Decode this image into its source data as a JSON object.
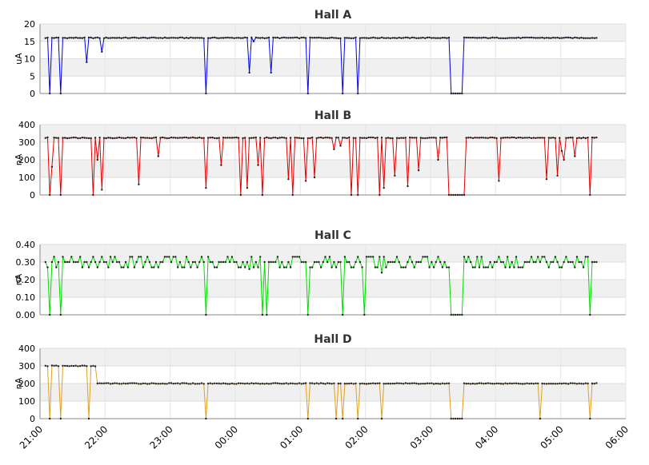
{
  "chart_data": [
    {
      "type": "line",
      "title": "Hall A",
      "ylabel": "uA",
      "ylim": [
        0,
        20
      ],
      "yticks": [
        "0",
        "5",
        "10",
        "15",
        "20"
      ],
      "color": "#0000e0",
      "base": 16,
      "x_range": [
        "21:00",
        "06:00"
      ],
      "dropouts": [
        [
          "21:08",
          0
        ],
        [
          "21:18",
          0
        ],
        [
          "21:43",
          9
        ],
        [
          "21:57",
          12
        ],
        [
          "23:33",
          0
        ],
        [
          "00:13",
          6
        ],
        [
          "00:17",
          15
        ],
        [
          "00:33",
          6
        ],
        [
          "01:06",
          0
        ],
        [
          "01:39",
          0
        ],
        [
          "01:52",
          0
        ]
      ],
      "gaps": [
        [
          "03:19",
          "03:30"
        ]
      ],
      "series": [
        {
          "values_desc": "steady near 16 uA with dips listed in dropouts"
        }
      ]
    },
    {
      "type": "line",
      "title": "Hall B",
      "ylabel": "nA",
      "ylim": [
        0,
        400
      ],
      "yticks": [
        "0",
        "100",
        "200",
        "300",
        "400"
      ],
      "color": "#e00000",
      "base": 325,
      "x_range": [
        "21:00",
        "06:00"
      ],
      "dropouts": [
        [
          "21:08",
          0
        ],
        [
          "21:11",
          160
        ],
        [
          "21:18",
          0
        ],
        [
          "21:48",
          0
        ],
        [
          "21:53",
          200
        ],
        [
          "21:57",
          30
        ],
        [
          "22:30",
          60
        ],
        [
          "22:49",
          220
        ],
        [
          "23:32",
          40
        ],
        [
          "23:46",
          170
        ],
        [
          "00:05",
          0
        ],
        [
          "00:11",
          40
        ],
        [
          "00:20",
          170
        ],
        [
          "00:25",
          0
        ],
        [
          "00:48",
          90
        ],
        [
          "00:52",
          0
        ],
        [
          "01:04",
          80
        ],
        [
          "01:12",
          100
        ],
        [
          "01:30",
          260
        ],
        [
          "01:36",
          280
        ],
        [
          "01:47",
          0
        ],
        [
          "01:52",
          0
        ],
        [
          "02:13",
          0
        ],
        [
          "02:17",
          40
        ],
        [
          "02:27",
          110
        ],
        [
          "02:38",
          50
        ],
        [
          "02:49",
          140
        ],
        [
          "03:07",
          200
        ],
        [
          "03:16",
          0
        ],
        [
          "03:31",
          0
        ],
        [
          "04:03",
          80
        ],
        [
          "04:47",
          90
        ],
        [
          "04:56",
          110
        ],
        [
          "05:00",
          250
        ],
        [
          "05:02",
          200
        ],
        [
          "05:12",
          220
        ],
        [
          "05:26",
          0
        ]
      ],
      "gaps": [
        [
          "03:19",
          "03:30"
        ]
      ],
      "series": [
        {
          "values_desc": "steady near 325 nA with frequent dropouts"
        }
      ]
    },
    {
      "type": "line",
      "title": "Hall C",
      "ylabel": "nA",
      "ylim": [
        0,
        0.4
      ],
      "yticks": [
        "0.00",
        "0.10",
        "0.20",
        "0.30",
        "0.40"
      ],
      "color": "#00dd00",
      "base": 0.3,
      "x_range": [
        "21:00",
        "06:00"
      ],
      "dropouts": [
        [
          "21:08",
          0
        ],
        [
          "21:18",
          0
        ],
        [
          "23:33",
          0
        ],
        [
          "00:12",
          0.26
        ],
        [
          "00:25",
          0
        ],
        [
          "00:28",
          0
        ],
        [
          "01:06",
          0
        ],
        [
          "01:39",
          0
        ],
        [
          "01:58",
          0
        ],
        [
          "02:14",
          0.24
        ],
        [
          "05:26",
          0
        ]
      ],
      "gaps": [
        [
          "03:19",
          "03:30"
        ]
      ],
      "series": [
        {
          "values_desc": "oscillating between 0.27 and 0.33 nA"
        }
      ]
    },
    {
      "type": "line",
      "title": "Hall D",
      "ylabel": "nA",
      "ylim": [
        0,
        400
      ],
      "yticks": [
        "0",
        "100",
        "200",
        "300",
        "400"
      ],
      "color": "#e0a020",
      "x_range": [
        "21:00",
        "06:00"
      ],
      "level_steps": [
        [
          "21:05",
          300
        ],
        [
          "21:53",
          200
        ]
      ],
      "dropouts": [
        [
          "21:08",
          0
        ],
        [
          "21:18",
          0
        ],
        [
          "21:45",
          0
        ],
        [
          "23:33",
          0
        ],
        [
          "01:06",
          0
        ],
        [
          "01:32",
          0
        ],
        [
          "01:39",
          0
        ],
        [
          "01:52",
          0
        ],
        [
          "02:14",
          0
        ],
        [
          "04:40",
          0
        ],
        [
          "05:26",
          0
        ]
      ],
      "gaps": [
        [
          "03:19",
          "03:30"
        ]
      ],
      "series": [
        {
          "values_desc": "about 300 nA until ~21:53, then about 200 nA"
        }
      ]
    }
  ],
  "x_axis": {
    "ticks": [
      "21:00",
      "22:00",
      "23:00",
      "00:00",
      "01:00",
      "02:00",
      "03:00",
      "04:00",
      "05:00",
      "06:00"
    ],
    "data_start": "21:05",
    "data_end": "05:34"
  }
}
